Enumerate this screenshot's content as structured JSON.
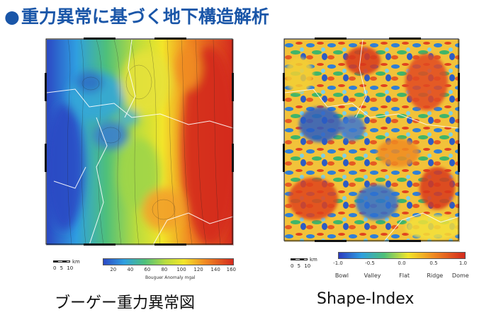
{
  "title": "重力異常に基づく地下構造解析",
  "left_panel": {
    "caption": "ブーゲー重力異常図",
    "scale": {
      "unit": "km",
      "ticks": "0 5 10"
    },
    "colorbar": {
      "ticks": [
        "20",
        "40",
        "60",
        "80",
        "100",
        "120",
        "140",
        "160"
      ],
      "label": "Bouguer Anomaly mgal"
    }
  },
  "right_panel": {
    "caption": "Shape-Index",
    "scale": {
      "unit": "km",
      "ticks": "0 5 10"
    },
    "colorbar": {
      "ticks": [
        "-1.0",
        "-0.5",
        "0.0",
        "0.5",
        "1.0"
      ],
      "classes": [
        "Bowl",
        "Valley",
        "Flat",
        "Ridge",
        "Dome"
      ]
    }
  },
  "colors": {
    "title": "#1a56a8",
    "scale_low": "#2b3bbf",
    "scale_mid": "#f2e52a",
    "scale_high": "#d42a1e"
  }
}
